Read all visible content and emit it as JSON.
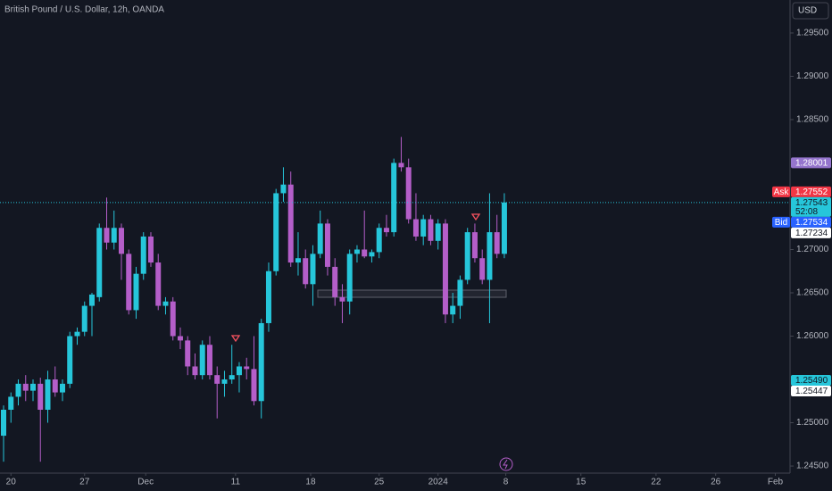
{
  "header": {
    "title": "British Pound / U.S. Dollar, 12h, OANDA",
    "currency": "USD"
  },
  "chart_data": {
    "type": "candlestick",
    "up_color": "#26c6da",
    "down_color": "#b45ec9",
    "open": [
      1.2485,
      1.2515,
      1.253,
      1.2545,
      1.2537,
      1.2545,
      1.2515,
      1.255,
      1.2535,
      1.2545,
      1.26,
      1.2605,
      1.2635,
      1.2645,
      1.2725,
      1.2708,
      1.2725,
      1.2695,
      1.263,
      1.2672,
      1.2715,
      1.2685,
      1.2635,
      1.264,
      1.26,
      1.2595,
      1.2565,
      1.2555,
      1.259,
      1.2555,
      1.2545,
      1.255,
      1.2555,
      1.2565,
      1.2562,
      1.2525,
      1.2615,
      1.2675,
      1.2765,
      1.2775,
      1.2685,
      1.269,
      1.266,
      1.2695,
      1.273,
      1.268,
      1.2645,
      1.264,
      1.2695,
      1.27,
      1.2692,
      1.2697,
      1.2725,
      1.272,
      1.28,
      1.2795,
      1.2735,
      1.2715,
      1.2735,
      1.271,
      1.273,
      1.2625,
      1.2635,
      1.2665,
      1.272,
      1.269,
      1.2665,
      1.272,
      1.2695
    ],
    "high": [
      1.252,
      1.2535,
      1.255,
      1.2555,
      1.255,
      1.2552,
      1.256,
      1.2565,
      1.255,
      1.2605,
      1.261,
      1.264,
      1.265,
      1.273,
      1.276,
      1.2745,
      1.273,
      1.27,
      1.268,
      1.272,
      1.272,
      1.2695,
      1.2645,
      1.2645,
      1.261,
      1.26,
      1.258,
      1.2595,
      1.26,
      1.2565,
      1.256,
      1.259,
      1.257,
      1.2575,
      1.26,
      1.262,
      1.2685,
      1.277,
      1.2795,
      1.279,
      1.272,
      1.27,
      1.2705,
      1.2745,
      1.2735,
      1.269,
      1.266,
      1.27,
      1.2705,
      1.2745,
      1.27,
      1.273,
      1.274,
      1.2805,
      1.283,
      1.2805,
      1.2765,
      1.274,
      1.274,
      1.2735,
      1.2735,
      1.265,
      1.267,
      1.2725,
      1.273,
      1.27,
      1.2765,
      1.274,
      1.2765
    ],
    "low": [
      1.2455,
      1.25,
      1.252,
      1.2525,
      1.2525,
      1.2455,
      1.25,
      1.253,
      1.2525,
      1.254,
      1.259,
      1.26,
      1.26,
      1.264,
      1.27,
      1.27,
      1.2665,
      1.2625,
      1.262,
      1.2665,
      1.268,
      1.263,
      1.2625,
      1.2595,
      1.2585,
      1.2555,
      1.255,
      1.255,
      1.255,
      1.2505,
      1.253,
      1.2545,
      1.2535,
      1.255,
      1.252,
      1.2505,
      1.2605,
      1.267,
      1.2755,
      1.268,
      1.267,
      1.2655,
      1.2635,
      1.269,
      1.267,
      1.2635,
      1.2615,
      1.2625,
      1.2685,
      1.269,
      1.2685,
      1.269,
      1.2715,
      1.2715,
      1.279,
      1.273,
      1.271,
      1.2705,
      1.2705,
      1.27,
      1.2615,
      1.2615,
      1.262,
      1.266,
      1.2685,
      1.266,
      1.2615,
      1.269,
      1.269
    ],
    "close": [
      1.2515,
      1.253,
      1.2545,
      1.2537,
      1.2545,
      1.2515,
      1.255,
      1.2535,
      1.2545,
      1.26,
      1.2605,
      1.2635,
      1.2648,
      1.2725,
      1.2708,
      1.2725,
      1.2695,
      1.263,
      1.2672,
      1.2715,
      1.2685,
      1.2635,
      1.264,
      1.26,
      1.2595,
      1.2565,
      1.2555,
      1.259,
      1.2555,
      1.2545,
      1.255,
      1.2555,
      1.2565,
      1.2562,
      1.2525,
      1.2615,
      1.2675,
      1.2765,
      1.2775,
      1.2685,
      1.269,
      1.266,
      1.2695,
      1.273,
      1.268,
      1.2645,
      1.264,
      1.2695,
      1.27,
      1.2692,
      1.2697,
      1.2725,
      1.272,
      1.28,
      1.2795,
      1.2735,
      1.2715,
      1.2735,
      1.271,
      1.273,
      1.2625,
      1.2635,
      1.2665,
      1.272,
      1.269,
      1.2665,
      1.272,
      1.2695,
      1.27543
    ],
    "xlim": [
      -0.485,
      106.8
    ],
    "xticks": [
      {
        "value": 1,
        "label": "20"
      },
      {
        "value": 11,
        "label": "27"
      },
      {
        "value": 19.3,
        "label": "Dec"
      },
      {
        "value": 31.5,
        "label": "11"
      },
      {
        "value": 41.7,
        "label": "18"
      },
      {
        "value": 51,
        "label": "25"
      },
      {
        "value": 59,
        "label": "2024"
      },
      {
        "value": 68.2,
        "label": "8"
      },
      {
        "value": 78.4,
        "label": "15"
      },
      {
        "value": 88.6,
        "label": "22"
      },
      {
        "value": 96.7,
        "label": "26"
      },
      {
        "value": 104.8,
        "label": "Feb"
      }
    ],
    "ylim": [
      1.24418,
      1.29881
    ],
    "yticks": [
      {
        "value": 1.295,
        "label": "1.29500"
      },
      {
        "value": 1.29,
        "label": "1.29000"
      },
      {
        "value": 1.285,
        "label": "1.28500"
      },
      {
        "value": 1.27,
        "label": "1.27000"
      },
      {
        "value": 1.265,
        "label": "1.26500"
      },
      {
        "value": 1.26,
        "label": "1.26000"
      },
      {
        "value": 1.25,
        "label": "1.25000"
      },
      {
        "value": 1.245,
        "label": "1.24500"
      }
    ],
    "price_labels": [
      {
        "value": 1.28001,
        "label": "1.28001",
        "bg": "#9575cd",
        "fg": "#ffffff"
      },
      {
        "value": 1.27552,
        "label": "1.27552",
        "tag": "Ask",
        "bg": "#f23645",
        "fg": "#ffffff"
      },
      {
        "value": 1.27543,
        "label": "1.27543",
        "countdown": "52:08",
        "bg": "#26c6da",
        "fg": "#131722",
        "current": true
      },
      {
        "value": 1.27534,
        "label": "1.27534",
        "tag": "Bid",
        "bg": "#2962ff",
        "fg": "#ffffff"
      },
      {
        "value": 1.27234,
        "label": "1.27234",
        "bg": "#ffffff",
        "fg": "#131722"
      },
      {
        "value": 1.2549,
        "label": "1.25490",
        "bg": "#26c6da",
        "fg": "#131722"
      },
      {
        "value": 1.25447,
        "label": "1.25447",
        "bg": "#ffffff",
        "fg": "#131722"
      }
    ]
  }
}
